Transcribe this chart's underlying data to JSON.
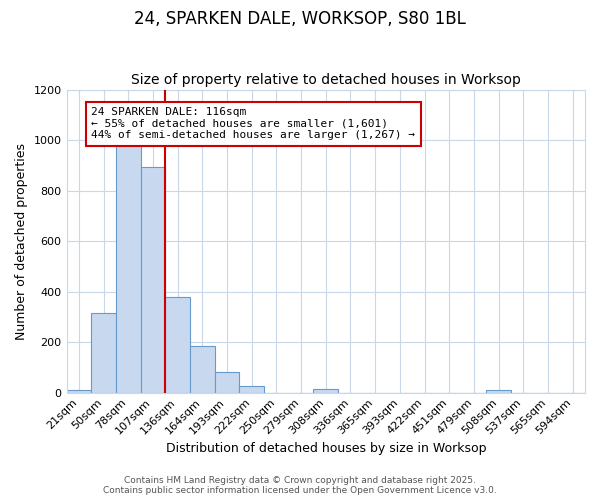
{
  "title": "24, SPARKEN DALE, WORKSOP, S80 1BL",
  "subtitle": "Size of property relative to detached houses in Worksop",
  "xlabel": "Distribution of detached houses by size in Worksop",
  "ylabel": "Number of detached properties",
  "categories": [
    "21sqm",
    "50sqm",
    "78sqm",
    "107sqm",
    "136sqm",
    "164sqm",
    "193sqm",
    "222sqm",
    "250sqm",
    "279sqm",
    "308sqm",
    "336sqm",
    "365sqm",
    "393sqm",
    "422sqm",
    "451sqm",
    "479sqm",
    "508sqm",
    "537sqm",
    "565sqm",
    "594sqm"
  ],
  "values": [
    10,
    315,
    1000,
    895,
    380,
    185,
    80,
    25,
    0,
    0,
    15,
    0,
    0,
    0,
    0,
    0,
    0,
    10,
    0,
    0,
    0
  ],
  "bar_color": "#c8d9ef",
  "bar_edgecolor": "#6699cc",
  "background_color": "#ffffff",
  "plot_bg_color": "#ffffff",
  "grid_color": "#c8d8e8",
  "red_line_index": 3,
  "annotation_text": "24 SPARKEN DALE: 116sqm\n← 55% of detached houses are smaller (1,601)\n44% of semi-detached houses are larger (1,267) →",
  "annotation_box_color": "#ffffff",
  "annotation_box_edgecolor": "#cc0000",
  "ylim": [
    0,
    1200
  ],
  "yticks": [
    0,
    200,
    400,
    600,
    800,
    1000,
    1200
  ],
  "footer": "Contains HM Land Registry data © Crown copyright and database right 2025.\nContains public sector information licensed under the Open Government Licence v3.0.",
  "title_fontsize": 12,
  "subtitle_fontsize": 10,
  "axis_label_fontsize": 9,
  "tick_fontsize": 8
}
